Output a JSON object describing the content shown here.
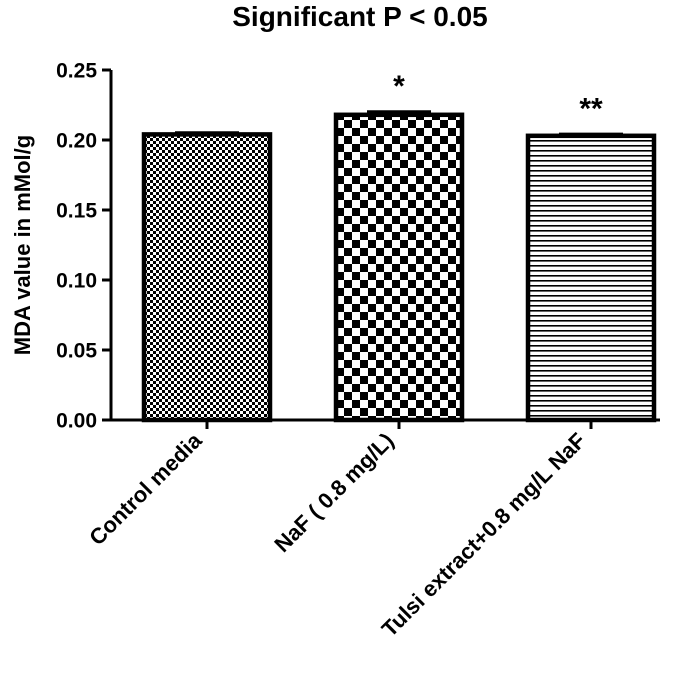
{
  "chart_data": {
    "type": "bar",
    "title": "Significant P < 0.05",
    "ylabel": "MDA value in mMol/g",
    "xlabel": "",
    "ylim": [
      0,
      0.25
    ],
    "yticks": [
      "0.00",
      "0.05",
      "0.10",
      "0.15",
      "0.20",
      "0.25"
    ],
    "categories": [
      "Control media",
      "NaF ( 0.8 mg/L)",
      "Tulsi extract+0.8 mg/L NaF"
    ],
    "values": [
      0.204,
      0.218,
      0.203
    ],
    "errors": [
      0.001,
      0.002,
      0.001
    ],
    "annotations": [
      "",
      "*",
      "**"
    ],
    "bar_patterns": [
      "fine-checker",
      "coarse-checker",
      "horizontal-lines"
    ],
    "colors": {
      "ink": "#000000",
      "background": "#ffffff"
    },
    "grid": false,
    "legend": "none"
  }
}
